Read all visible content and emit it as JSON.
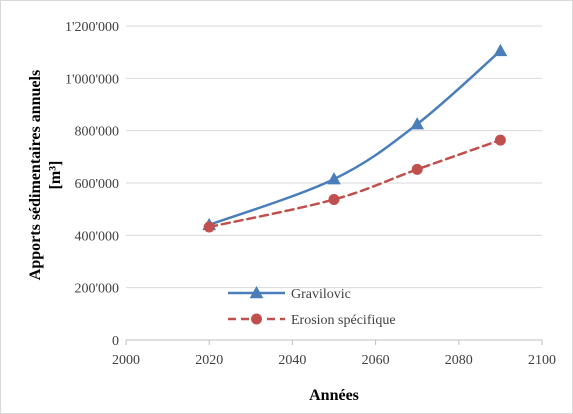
{
  "chart_data": {
    "type": "line",
    "title": "",
    "xlabel": "Années",
    "ylabel_lines": [
      "Apports sédimentaires annuels",
      "[m³]"
    ],
    "xlim": [
      2000,
      2100
    ],
    "ylim": [
      0,
      1200000
    ],
    "x_ticks": [
      2000,
      2020,
      2040,
      2060,
      2080,
      2100
    ],
    "x_tick_labels": [
      "2000",
      "2020",
      "2040",
      "2060",
      "2080",
      "2100"
    ],
    "y_ticks": [
      0,
      200000,
      400000,
      600000,
      800000,
      1000000,
      1200000
    ],
    "y_tick_labels": [
      "0",
      "200'000",
      "400'000",
      "600'000",
      "800'000",
      "1'000'000",
      "1'200'000"
    ],
    "grid": "horizontal",
    "legend_position": "bottom-center",
    "series": [
      {
        "name": "Gravilovic",
        "color": "#4a7ebb",
        "style": "solid",
        "marker": "triangle",
        "x": [
          2020,
          2050,
          2070,
          2090
        ],
        "y": [
          440000,
          615000,
          825000,
          1105000
        ]
      },
      {
        "name": "Erosion spécifique",
        "color": "#c0504d",
        "style": "dashed",
        "marker": "circle",
        "x": [
          2020,
          2050,
          2070,
          2090
        ],
        "y": [
          432000,
          537000,
          652000,
          764000
        ]
      }
    ]
  }
}
